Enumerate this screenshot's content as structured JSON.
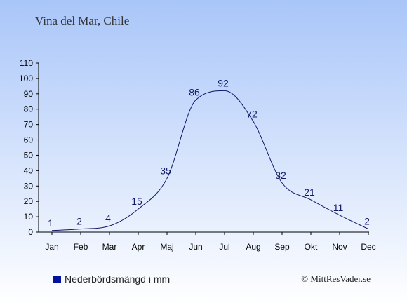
{
  "title": "Vina del Mar, Chile",
  "legend": {
    "label": "Nederbördsmängd i mm",
    "color": "#00129e"
  },
  "copyright": "© MittResVader.se",
  "chart_data": {
    "type": "line",
    "title": "Vina del Mar, Chile",
    "xlabel": "",
    "ylabel": "",
    "categories": [
      "Jan",
      "Feb",
      "Mar",
      "Apr",
      "Maj",
      "Jun",
      "Jul",
      "Aug",
      "Sep",
      "Okt",
      "Nov",
      "Dec"
    ],
    "series": [
      {
        "name": "Nederbördsmängd i mm",
        "values": [
          1,
          2,
          4,
          15,
          35,
          86,
          92,
          72,
          32,
          21,
          11,
          2
        ],
        "color": "#11196a"
      }
    ],
    "ylim": [
      0,
      110
    ],
    "yticks": [
      0,
      10,
      20,
      30,
      40,
      50,
      60,
      70,
      80,
      90,
      100,
      110
    ],
    "grid": false,
    "legend_position": "bottom-left"
  }
}
